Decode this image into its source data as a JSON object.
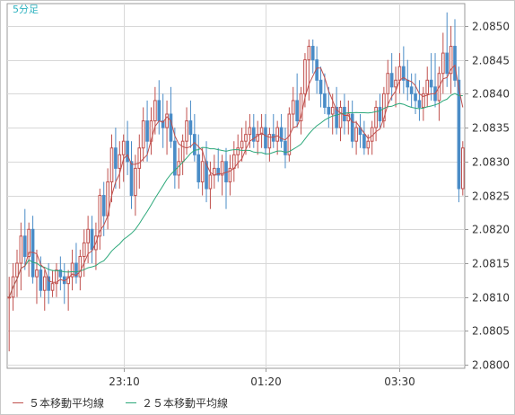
{
  "chart_data": {
    "type": "candlestick",
    "timeframe_label": "5分足",
    "x_tick_labels": [
      {
        "index": 29,
        "label": "23:10"
      },
      {
        "index": 65,
        "label": "01:20"
      },
      {
        "index": 99,
        "label": "03:30"
      }
    ],
    "y_ticks": [
      2.08,
      2.0805,
      2.081,
      2.0815,
      2.082,
      2.0825,
      2.083,
      2.0835,
      2.084,
      2.0845,
      2.085
    ],
    "ylim": [
      2.07995,
      2.08533
    ],
    "ohlc": [
      [
        2.081,
        2.0813,
        2.0802,
        2.081
      ],
      [
        2.081,
        2.0815,
        2.0808,
        2.0813
      ],
      [
        2.0813,
        2.0817,
        2.081,
        2.0815
      ],
      [
        2.0815,
        2.0821,
        2.0811,
        2.0819
      ],
      [
        2.0819,
        2.0823,
        2.0814,
        2.0816
      ],
      [
        2.0816,
        2.0821,
        2.0813,
        2.082
      ],
      [
        2.082,
        2.0822,
        2.0812,
        2.0813
      ],
      [
        2.0813,
        2.0817,
        2.0809,
        2.0814
      ],
      [
        2.0814,
        2.0816,
        2.081,
        2.0811
      ],
      [
        2.0811,
        2.0814,
        2.0808,
        2.0813
      ],
      [
        2.0813,
        2.0815,
        2.0809,
        2.0811
      ],
      [
        2.0811,
        2.0814,
        2.081,
        2.0812
      ],
      [
        2.0812,
        2.0815,
        2.081,
        2.0814
      ],
      [
        2.0814,
        2.0816,
        2.0811,
        2.0813
      ],
      [
        2.0813,
        2.0815,
        2.0809,
        2.0812
      ],
      [
        2.0812,
        2.0814,
        2.0808,
        2.0813
      ],
      [
        2.0813,
        2.0817,
        2.0811,
        2.0815
      ],
      [
        2.0815,
        2.0818,
        2.0812,
        2.0813
      ],
      [
        2.0813,
        2.0817,
        2.0811,
        2.0816
      ],
      [
        2.0816,
        2.082,
        2.0813,
        2.0818
      ],
      [
        2.0818,
        2.0822,
        2.0815,
        2.082
      ],
      [
        2.082,
        2.0822,
        2.0815,
        2.0817
      ],
      [
        2.0817,
        2.0821,
        2.0814,
        2.0819
      ],
      [
        2.0819,
        2.0826,
        2.0817,
        2.0825
      ],
      [
        2.0825,
        2.0827,
        2.0819,
        2.0822
      ],
      [
        2.0822,
        2.0829,
        2.082,
        2.0827
      ],
      [
        2.0827,
        2.0834,
        2.0824,
        2.0832
      ],
      [
        2.0832,
        2.0835,
        2.0826,
        2.0829
      ],
      [
        2.0829,
        2.0833,
        2.0826,
        2.0831
      ],
      [
        2.0831,
        2.0834,
        2.0827,
        2.0833
      ],
      [
        2.0833,
        2.0836,
        2.0828,
        2.083
      ],
      [
        2.083,
        2.0833,
        2.0823,
        2.0825
      ],
      [
        2.0825,
        2.0831,
        2.0822,
        2.0829
      ],
      [
        2.0829,
        2.0834,
        2.0826,
        2.0832
      ],
      [
        2.0832,
        2.0838,
        2.083,
        2.0836
      ],
      [
        2.0836,
        2.0839,
        2.083,
        2.0833
      ],
      [
        2.0833,
        2.0838,
        2.0831,
        2.0836
      ],
      [
        2.0836,
        2.0841,
        2.0834,
        2.0839
      ],
      [
        2.0839,
        2.0842,
        2.0834,
        2.0836
      ],
      [
        2.0836,
        2.084,
        2.0832,
        2.0835
      ],
      [
        2.0835,
        2.0839,
        2.0831,
        2.0837
      ],
      [
        2.0837,
        2.0841,
        2.0832,
        2.0833
      ],
      [
        2.0833,
        2.0835,
        2.0826,
        2.0828
      ],
      [
        2.0828,
        2.0832,
        2.0826,
        2.083
      ],
      [
        2.083,
        2.0834,
        2.0828,
        2.0833
      ],
      [
        2.0833,
        2.0838,
        2.0831,
        2.0836
      ],
      [
        2.0836,
        2.0839,
        2.0832,
        2.0834
      ],
      [
        2.0834,
        2.0837,
        2.083,
        2.0831
      ],
      [
        2.0831,
        2.0834,
        2.0826,
        2.0827
      ],
      [
        2.0827,
        2.0832,
        2.0825,
        2.083
      ],
      [
        2.083,
        2.0833,
        2.0824,
        2.0826
      ],
      [
        2.0826,
        2.083,
        2.0823,
        2.0828
      ],
      [
        2.0828,
        2.0831,
        2.0826,
        2.0829
      ],
      [
        2.0829,
        2.0832,
        2.0827,
        2.0828
      ],
      [
        2.0828,
        2.0831,
        2.0825,
        2.083
      ],
      [
        2.083,
        2.0832,
        2.0823,
        2.0827
      ],
      [
        2.0827,
        2.0831,
        2.0825,
        2.0829
      ],
      [
        2.0829,
        2.0833,
        2.0827,
        2.0831
      ],
      [
        2.0831,
        2.0834,
        2.0829,
        2.0832
      ],
      [
        2.0832,
        2.0835,
        2.083,
        2.0833
      ],
      [
        2.0833,
        2.0836,
        2.0831,
        2.0834
      ],
      [
        2.0834,
        2.0837,
        2.0832,
        2.0835
      ],
      [
        2.0835,
        2.0837,
        2.0832,
        2.0833
      ],
      [
        2.0833,
        2.0836,
        2.0831,
        2.0834
      ],
      [
        2.0834,
        2.0837,
        2.0832,
        2.0835
      ],
      [
        2.0835,
        2.0837,
        2.0831,
        2.0832
      ],
      [
        2.0832,
        2.0835,
        2.083,
        2.0834
      ],
      [
        2.0834,
        2.0837,
        2.0832,
        2.0833
      ],
      [
        2.0833,
        2.0836,
        2.0831,
        2.0835
      ],
      [
        2.0835,
        2.0837,
        2.0832,
        2.0833
      ],
      [
        2.0833,
        2.0835,
        2.0829,
        2.0831
      ],
      [
        2.0831,
        2.0838,
        2.083,
        2.0837
      ],
      [
        2.0837,
        2.0841,
        2.0835,
        2.0839
      ],
      [
        2.0839,
        2.0843,
        2.0835,
        2.0836
      ],
      [
        2.0836,
        2.0841,
        2.0834,
        2.084
      ],
      [
        2.084,
        2.0846,
        2.0838,
        2.0845
      ],
      [
        2.0845,
        2.0848,
        2.0839,
        2.0847
      ],
      [
        2.0847,
        2.0848,
        2.0843,
        2.0845
      ],
      [
        2.0845,
        2.0847,
        2.084,
        2.0842
      ],
      [
        2.0842,
        2.0844,
        2.0838,
        2.084
      ],
      [
        2.084,
        2.0843,
        2.0837,
        2.0838
      ],
      [
        2.0838,
        2.0841,
        2.0835,
        2.0837
      ],
      [
        2.0837,
        2.084,
        2.0834,
        2.0838
      ],
      [
        2.0838,
        2.0841,
        2.0834,
        2.0835
      ],
      [
        2.0835,
        2.0839,
        2.0833,
        2.0838
      ],
      [
        2.0838,
        2.084,
        2.0834,
        2.0836
      ],
      [
        2.0836,
        2.0839,
        2.0834,
        2.0837
      ],
      [
        2.0837,
        2.0839,
        2.0832,
        2.0833
      ],
      [
        2.0833,
        2.0836,
        2.0831,
        2.0835
      ],
      [
        2.0835,
        2.0837,
        2.0832,
        2.0834
      ],
      [
        2.0834,
        2.0836,
        2.0831,
        2.0832
      ],
      [
        2.0832,
        2.0834,
        2.0831,
        2.0833
      ],
      [
        2.0833,
        2.0836,
        2.0831,
        2.0835
      ],
      [
        2.0835,
        2.0839,
        2.0833,
        2.0838
      ],
      [
        2.0838,
        2.084,
        2.0835,
        2.0836
      ],
      [
        2.0836,
        2.0841,
        2.0835,
        2.084
      ],
      [
        2.084,
        2.0845,
        2.0838,
        2.0843
      ],
      [
        2.0843,
        2.0846,
        2.0839,
        2.0841
      ],
      [
        2.0841,
        2.0844,
        2.0838,
        2.0842
      ],
      [
        2.0842,
        2.0846,
        2.084,
        2.0844
      ],
      [
        2.0844,
        2.0847,
        2.084,
        2.0842
      ],
      [
        2.0842,
        2.0845,
        2.0839,
        2.0841
      ],
      [
        2.0841,
        2.0843,
        2.0838,
        2.084
      ],
      [
        2.084,
        2.0843,
        2.0837,
        2.0839
      ],
      [
        2.0839,
        2.0842,
        2.0836,
        2.0838
      ],
      [
        2.0838,
        2.0841,
        2.0836,
        2.084
      ],
      [
        2.084,
        2.0844,
        2.0838,
        2.0842
      ],
      [
        2.0842,
        2.0846,
        2.0839,
        2.0841
      ],
      [
        2.0841,
        2.0846,
        2.0838,
        2.0839
      ],
      [
        2.0839,
        2.0844,
        2.0836,
        2.0843
      ],
      [
        2.0843,
        2.0849,
        2.084,
        2.0846
      ],
      [
        2.0846,
        2.0852,
        2.0841,
        2.0843
      ],
      [
        2.0843,
        2.085,
        2.084,
        2.0847
      ],
      [
        2.0847,
        2.0851,
        2.0841,
        2.0842
      ],
      [
        2.0842,
        2.0844,
        2.0824,
        2.0826
      ],
      [
        2.0826,
        2.0833,
        2.0825,
        2.0832
      ]
    ],
    "ma5": [],
    "ma25": [],
    "legend": [
      {
        "label": "５本移動平均線",
        "color": "#c0504d"
      },
      {
        "label": "２５本移動平均線",
        "color": "#2ca87a"
      }
    ],
    "colors": {
      "up": "#c0504d",
      "down": "#4a8cc7",
      "grid": "#d8d8d8",
      "axis": "#999999",
      "ma5": "#c0504d",
      "ma25": "#2ca87a",
      "label": "#2fb3c0",
      "tick_text": "#333333"
    }
  }
}
